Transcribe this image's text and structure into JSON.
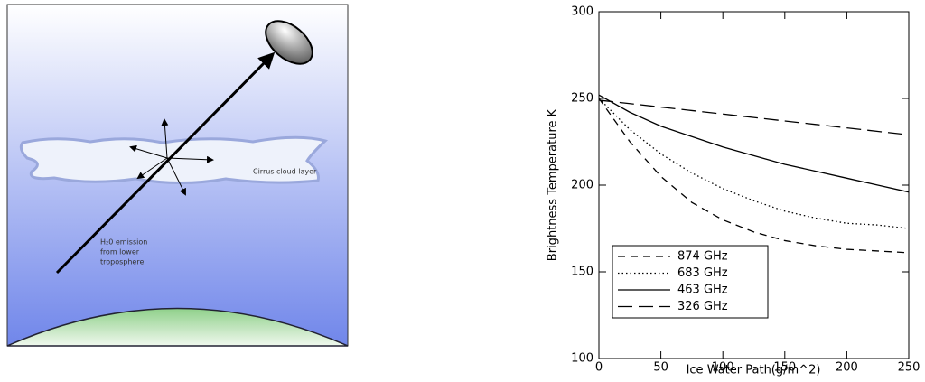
{
  "diagram": {
    "cloud_label": "Cirrus cloud layer",
    "emission_label": [
      "H₂0 emission",
      "from lower",
      "troposphere"
    ]
  },
  "chart_data": {
    "type": "line",
    "xlabel": "Ice Water Path(g/m^2)",
    "ylabel": "Brightness Temperature K",
    "x": [
      0,
      25,
      50,
      75,
      100,
      125,
      150,
      175,
      200,
      225,
      250
    ],
    "series": [
      {
        "name": "874 GHz",
        "color": "#000000",
        "dash": "8,6",
        "values": [
          250,
          225,
          205,
          190,
          180,
          173,
          168,
          165,
          163,
          162,
          161
        ]
      },
      {
        "name": "683 GHz",
        "color": "#000000",
        "dash": "1.5,3",
        "values": [
          250,
          232,
          218,
          207,
          198,
          191,
          185,
          181,
          178,
          177,
          175
        ]
      },
      {
        "name": "463 GHz",
        "color": "#000000",
        "dash": "none",
        "values": [
          252,
          242,
          234,
          228,
          222,
          217,
          212,
          208,
          204,
          200,
          196
        ]
      },
      {
        "name": "326 GHz",
        "color": "#000000",
        "dash": "16,7",
        "values": [
          249,
          247,
          245,
          243,
          241,
          239,
          237,
          235,
          233,
          231,
          229
        ]
      }
    ],
    "xlim": [
      0,
      250
    ],
    "xticks": [
      0,
      50,
      100,
      150,
      200,
      250
    ],
    "ylim": [
      100,
      300
    ],
    "yticks": [
      100,
      150,
      200,
      250,
      300
    ],
    "legend": "lower left"
  }
}
